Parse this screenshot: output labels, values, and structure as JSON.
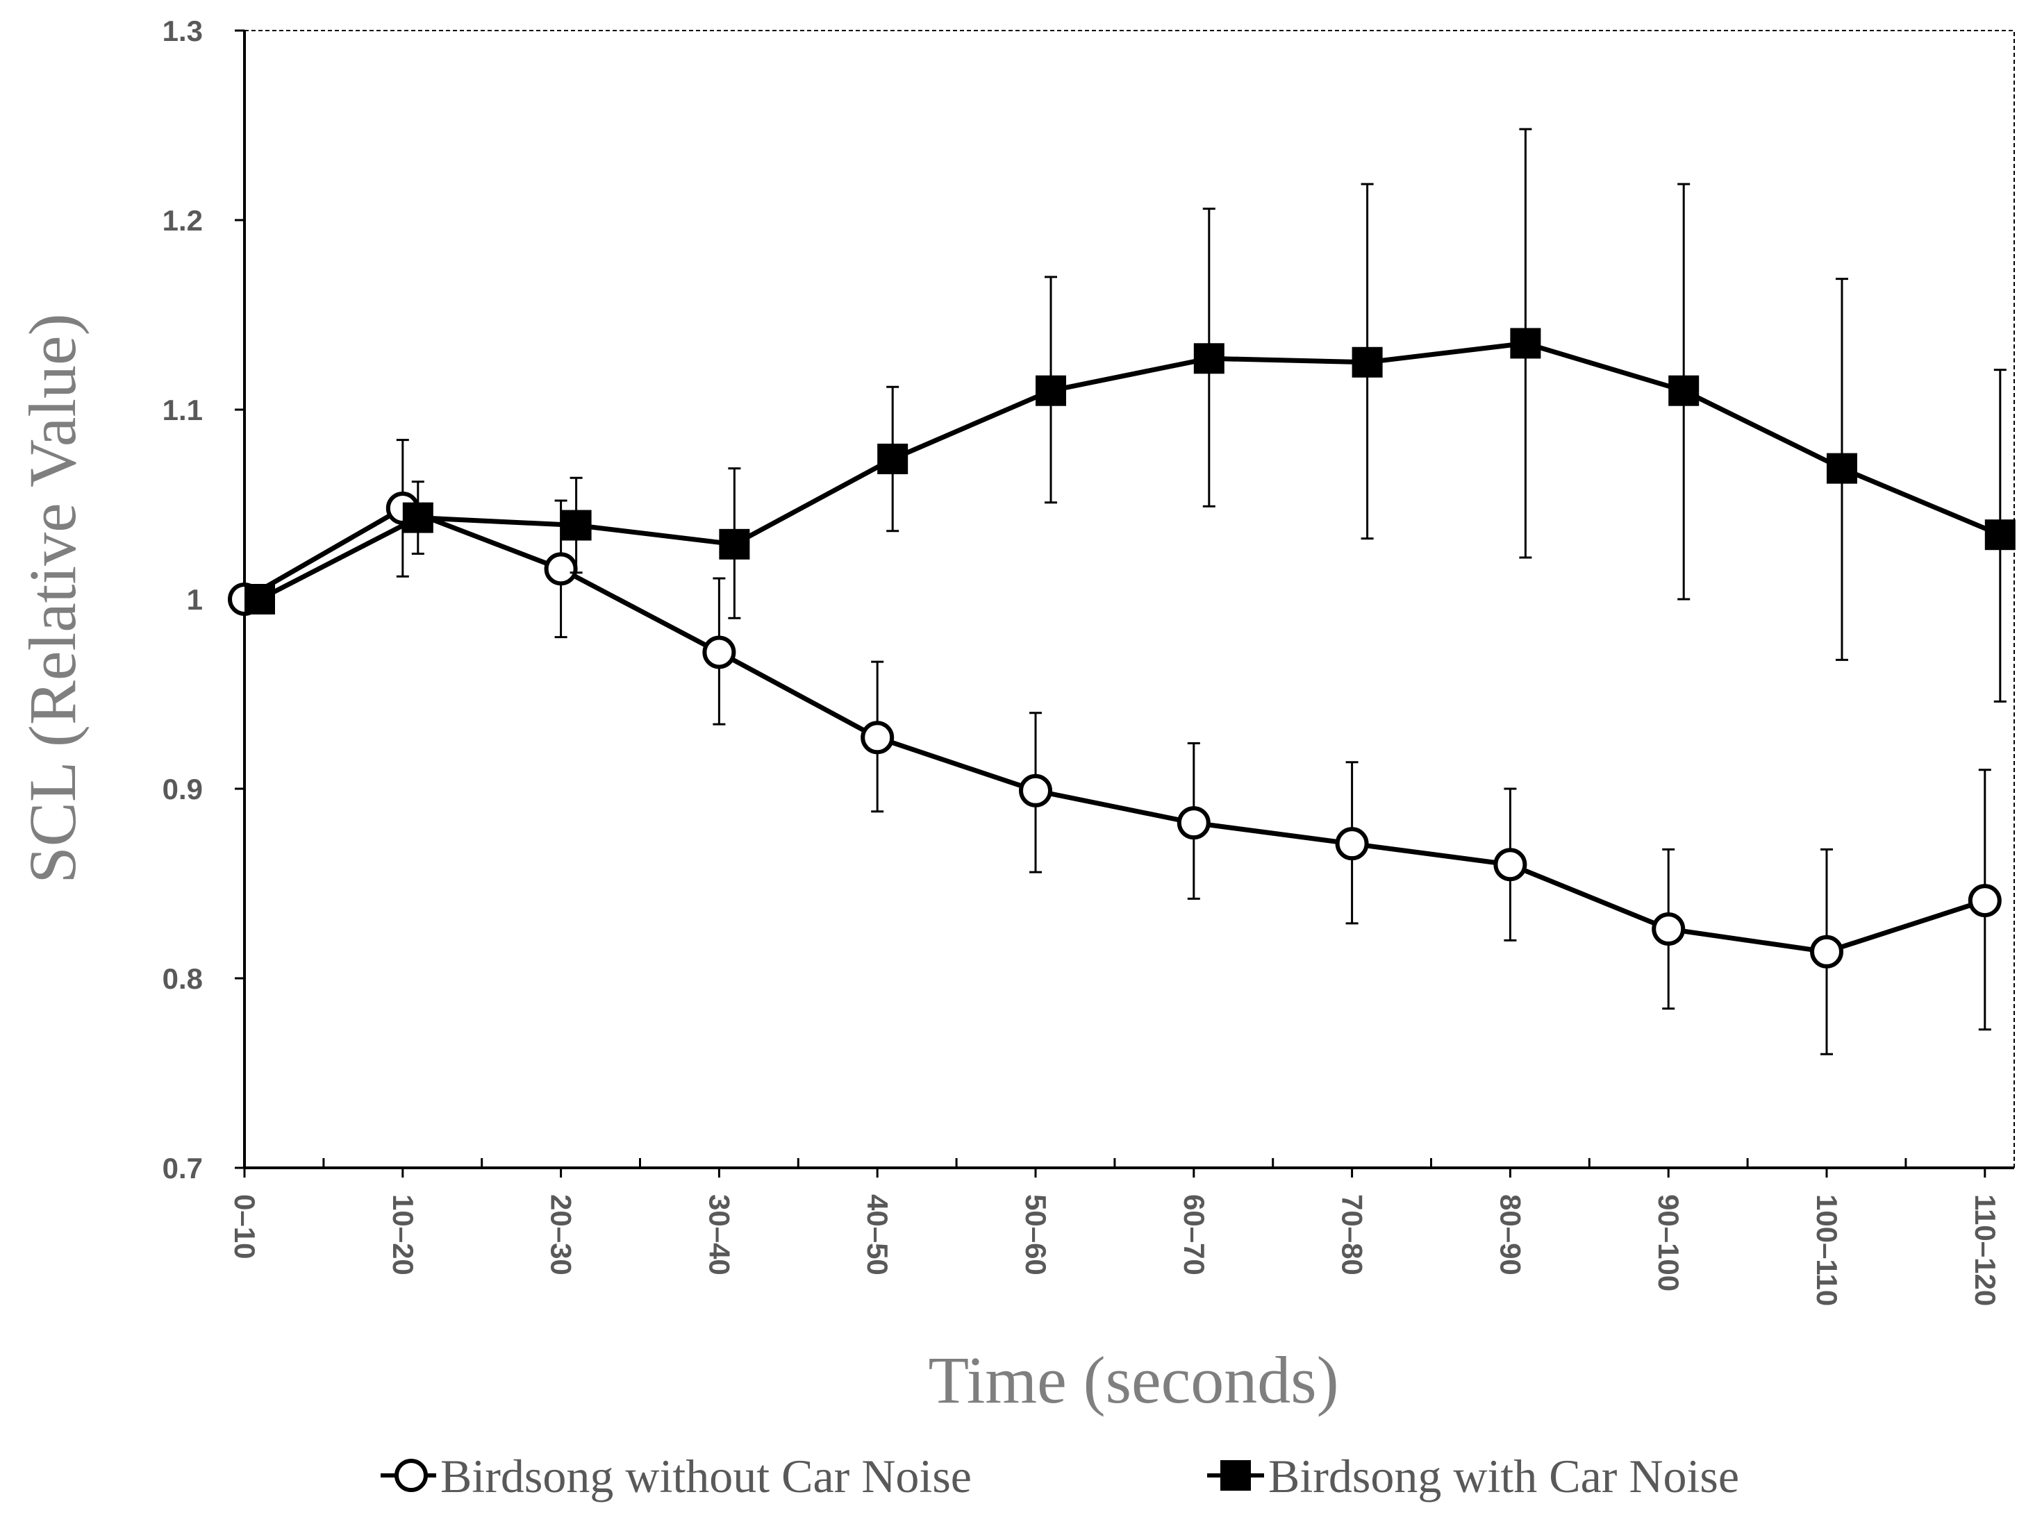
{
  "chart_data": {
    "type": "line",
    "title": "",
    "xlabel": "Time (seconds)",
    "ylabel": "SCL (Relative Value)",
    "ylim": [
      0.7,
      1.3
    ],
    "yticks": [
      "0.7",
      "0.8",
      "0.9",
      "1",
      "1.1",
      "1.2",
      "1.3"
    ],
    "categories": [
      "0–10",
      "10–20",
      "20–30",
      "30–40",
      "40–50",
      "50–60",
      "60–70",
      "70–80",
      "80–90",
      "90–100",
      "100–110",
      "110–120"
    ],
    "grid": false,
    "legend_position": "bottom",
    "series": [
      {
        "name": "Birdsong without Car Noise",
        "marker": "open-circle",
        "values": [
          1.0,
          1.048,
          1.016,
          0.972,
          0.927,
          0.899,
          0.882,
          0.871,
          0.86,
          0.826,
          0.814,
          0.841
        ],
        "err_low": [
          1.0,
          1.012,
          0.98,
          0.934,
          0.888,
          0.856,
          0.842,
          0.829,
          0.82,
          0.784,
          0.76,
          0.773
        ],
        "err_high": [
          1.0,
          1.084,
          1.052,
          1.011,
          0.967,
          0.94,
          0.924,
          0.914,
          0.9,
          0.868,
          0.868,
          0.91
        ]
      },
      {
        "name": "Birdsong with Car Noise",
        "marker": "filled-square",
        "values": [
          1.0,
          1.043,
          1.039,
          1.029,
          1.074,
          1.11,
          1.127,
          1.125,
          1.135,
          1.11,
          1.069,
          1.034
        ],
        "err_low": [
          1.0,
          1.024,
          1.014,
          0.99,
          1.036,
          1.051,
          1.049,
          1.032,
          1.022,
          1.0,
          0.968,
          0.946
        ],
        "err_high": [
          1.0,
          1.062,
          1.064,
          1.069,
          1.112,
          1.17,
          1.206,
          1.219,
          1.248,
          1.219,
          1.169,
          1.121
        ]
      }
    ]
  }
}
